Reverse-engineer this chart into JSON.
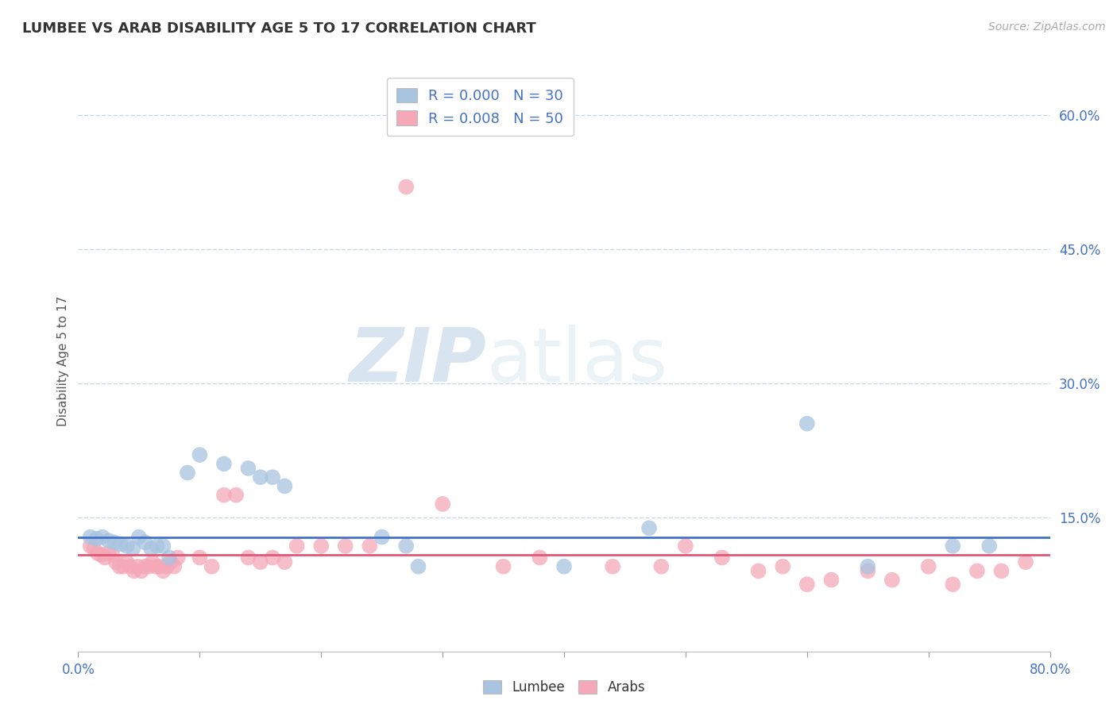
{
  "title": "LUMBEE VS ARAB DISABILITY AGE 5 TO 17 CORRELATION CHART",
  "source_text": "Source: ZipAtlas.com",
  "ylabel": "Disability Age 5 to 17",
  "xlim": [
    0.0,
    0.8
  ],
  "ylim": [
    0.0,
    0.65
  ],
  "xtick_positions": [
    0.0,
    0.1,
    0.2,
    0.3,
    0.4,
    0.5,
    0.6,
    0.7,
    0.8
  ],
  "xticklabels": [
    "0.0%",
    "",
    "",
    "",
    "",
    "",
    "",
    "",
    "80.0%"
  ],
  "ytick_positions": [
    0.15,
    0.3,
    0.45,
    0.6
  ],
  "ytick_labels": [
    "15.0%",
    "30.0%",
    "45.0%",
    "60.0%"
  ],
  "lumbee_color": "#a8c4e0",
  "arab_color": "#f4a8b8",
  "lumbee_line_color": "#4472c4",
  "arab_line_color": "#e05878",
  "grid_color": "#c8d8e8",
  "background_color": "#ffffff",
  "lumbee_hline_y": 0.128,
  "arab_hline_y": 0.108,
  "lumbee_points": [
    [
      0.01,
      0.128
    ],
    [
      0.015,
      0.126
    ],
    [
      0.02,
      0.128
    ],
    [
      0.025,
      0.124
    ],
    [
      0.03,
      0.122
    ],
    [
      0.035,
      0.12
    ],
    [
      0.04,
      0.118
    ],
    [
      0.045,
      0.115
    ],
    [
      0.05,
      0.128
    ],
    [
      0.055,
      0.122
    ],
    [
      0.06,
      0.115
    ],
    [
      0.065,
      0.118
    ],
    [
      0.07,
      0.118
    ],
    [
      0.075,
      0.105
    ],
    [
      0.09,
      0.2
    ],
    [
      0.1,
      0.22
    ],
    [
      0.12,
      0.21
    ],
    [
      0.14,
      0.205
    ],
    [
      0.15,
      0.195
    ],
    [
      0.16,
      0.195
    ],
    [
      0.17,
      0.185
    ],
    [
      0.25,
      0.128
    ],
    [
      0.27,
      0.118
    ],
    [
      0.28,
      0.095
    ],
    [
      0.4,
      0.095
    ],
    [
      0.47,
      0.138
    ],
    [
      0.6,
      0.255
    ],
    [
      0.65,
      0.095
    ],
    [
      0.72,
      0.118
    ],
    [
      0.75,
      0.118
    ]
  ],
  "arab_points": [
    [
      0.01,
      0.118
    ],
    [
      0.013,
      0.115
    ],
    [
      0.016,
      0.11
    ],
    [
      0.019,
      0.108
    ],
    [
      0.022,
      0.105
    ],
    [
      0.025,
      0.11
    ],
    [
      0.028,
      0.108
    ],
    [
      0.031,
      0.1
    ],
    [
      0.034,
      0.095
    ],
    [
      0.037,
      0.095
    ],
    [
      0.04,
      0.1
    ],
    [
      0.043,
      0.095
    ],
    [
      0.046,
      0.09
    ],
    [
      0.049,
      0.095
    ],
    [
      0.052,
      0.09
    ],
    [
      0.055,
      0.095
    ],
    [
      0.058,
      0.095
    ],
    [
      0.061,
      0.1
    ],
    [
      0.064,
      0.095
    ],
    [
      0.067,
      0.095
    ],
    [
      0.07,
      0.09
    ],
    [
      0.073,
      0.095
    ],
    [
      0.076,
      0.1
    ],
    [
      0.079,
      0.095
    ],
    [
      0.082,
      0.105
    ],
    [
      0.1,
      0.105
    ],
    [
      0.11,
      0.095
    ],
    [
      0.12,
      0.175
    ],
    [
      0.13,
      0.175
    ],
    [
      0.14,
      0.105
    ],
    [
      0.15,
      0.1
    ],
    [
      0.16,
      0.105
    ],
    [
      0.17,
      0.1
    ],
    [
      0.18,
      0.118
    ],
    [
      0.2,
      0.118
    ],
    [
      0.22,
      0.118
    ],
    [
      0.24,
      0.118
    ],
    [
      0.27,
      0.52
    ],
    [
      0.3,
      0.165
    ],
    [
      0.35,
      0.095
    ],
    [
      0.38,
      0.105
    ],
    [
      0.44,
      0.095
    ],
    [
      0.48,
      0.095
    ],
    [
      0.5,
      0.118
    ],
    [
      0.53,
      0.105
    ],
    [
      0.56,
      0.09
    ],
    [
      0.58,
      0.095
    ],
    [
      0.6,
      0.075
    ],
    [
      0.62,
      0.08
    ],
    [
      0.65,
      0.09
    ],
    [
      0.67,
      0.08
    ],
    [
      0.7,
      0.095
    ],
    [
      0.72,
      0.075
    ],
    [
      0.74,
      0.09
    ],
    [
      0.76,
      0.09
    ],
    [
      0.78,
      0.1
    ]
  ]
}
